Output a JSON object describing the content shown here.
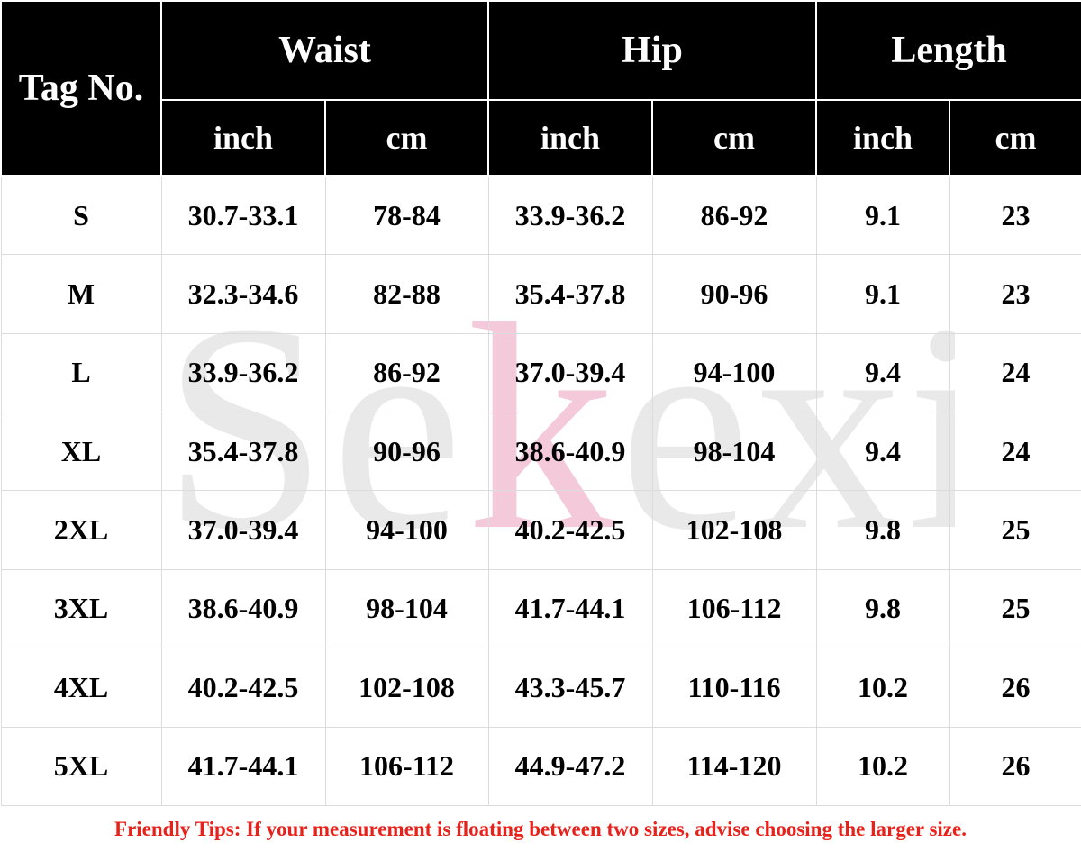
{
  "header": {
    "tag_label": "Tag No.",
    "groups": [
      "Waist",
      "Hip",
      "Length"
    ],
    "units": [
      "inch",
      "cm",
      "inch",
      "cm",
      "inch",
      "cm"
    ]
  },
  "rows": [
    [
      "S",
      "30.7-33.1",
      "78-84",
      "33.9-36.2",
      "86-92",
      "9.1",
      "23"
    ],
    [
      "M",
      "32.3-34.6",
      "82-88",
      "35.4-37.8",
      "90-96",
      "9.1",
      "23"
    ],
    [
      "L",
      "33.9-36.2",
      "86-92",
      "37.0-39.4",
      "94-100",
      "9.4",
      "24"
    ],
    [
      "XL",
      "35.4-37.8",
      "90-96",
      "38.6-40.9",
      "98-104",
      "9.4",
      "24"
    ],
    [
      "2XL",
      "37.0-39.4",
      "94-100",
      "40.2-42.5",
      "102-108",
      "9.8",
      "25"
    ],
    [
      "3XL",
      "38.6-40.9",
      "98-104",
      "41.7-44.1",
      "106-112",
      "9.8",
      "25"
    ],
    [
      "4XL",
      "40.2-42.5",
      "102-108",
      "43.3-45.7",
      "110-116",
      "10.2",
      "26"
    ],
    [
      "5XL",
      "41.7-44.1",
      "106-112",
      "44.9-47.2",
      "114-120",
      "10.2",
      "26"
    ]
  ],
  "watermark": {
    "prefix": "Se",
    "accent": "k",
    "suffix": "exi"
  },
  "tips": "Friendly Tips: If your measurement is floating between two sizes, advise choosing the larger size.",
  "colors": {
    "header_bg": "#000000",
    "header_text": "#ffffff",
    "tips_text": "#e8221b",
    "watermark": "#e9e9e9",
    "watermark_accent": "#f4c9da"
  }
}
